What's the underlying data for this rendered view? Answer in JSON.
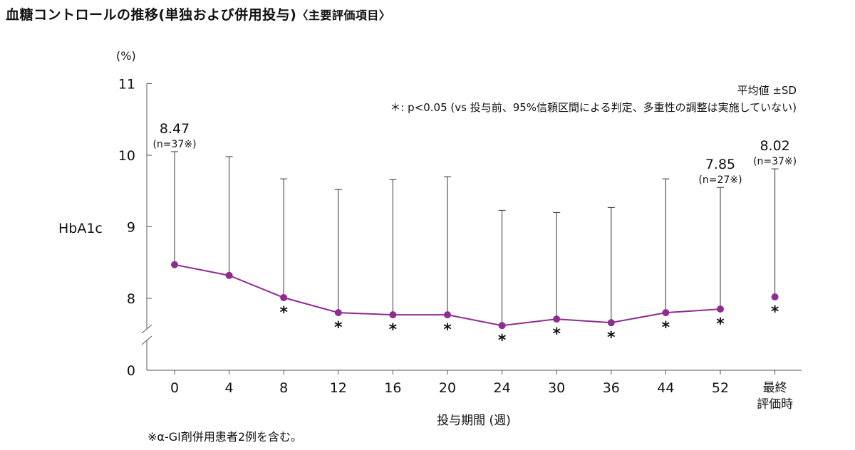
{
  "title": {
    "main": "血糖コントロールの推移(単独および併用投与)",
    "sub": "〈主要評価項目〉"
  },
  "footnote": "※α-GI剤併用患者2例を含む。",
  "notes": {
    "mean_sd": "平均値 ±SD",
    "significance": "＊: p<0.05 (vs 投与前、95%信頼区間による判定、多重性の調整は実施していない)"
  },
  "colors": {
    "series": "#8e2c8f",
    "axis": "#555555",
    "text": "#111111"
  },
  "chart_data": {
    "type": "line",
    "title": "血糖コントロールの推移(単独および併用投与)",
    "ylabel": "HbA1c",
    "yunit": "(%)",
    "xlabel": "投与期間 (週)",
    "categories": [
      "0",
      "4",
      "8",
      "12",
      "16",
      "20",
      "24",
      "30",
      "36",
      "44",
      "52",
      "最終評価時"
    ],
    "y_ticks": [
      "0",
      "8",
      "9",
      "10",
      "11"
    ],
    "y_axis_break": true,
    "ylim_display": [
      7.0,
      11.0
    ],
    "series": [
      {
        "values": [
          8.47,
          8.32,
          8.01,
          7.8,
          7.77,
          7.77,
          7.62,
          7.71,
          7.66,
          7.8,
          7.85,
          8.02
        ],
        "sd_upper": [
          10.05,
          9.98,
          9.67,
          9.52,
          9.66,
          9.7,
          9.23,
          9.2,
          9.27,
          9.67,
          9.55,
          9.81
        ],
        "significant": [
          false,
          false,
          true,
          true,
          true,
          true,
          true,
          true,
          true,
          true,
          true,
          true
        ]
      }
    ],
    "data_labels": [
      {
        "index": 0,
        "value": "8.47",
        "n": "(n=37※)"
      },
      {
        "index": 10,
        "value": "7.85",
        "n": "(n=27※)"
      },
      {
        "index": 11,
        "value": "8.02",
        "n": "(n=37※)"
      }
    ],
    "significance_marker": "＊"
  }
}
